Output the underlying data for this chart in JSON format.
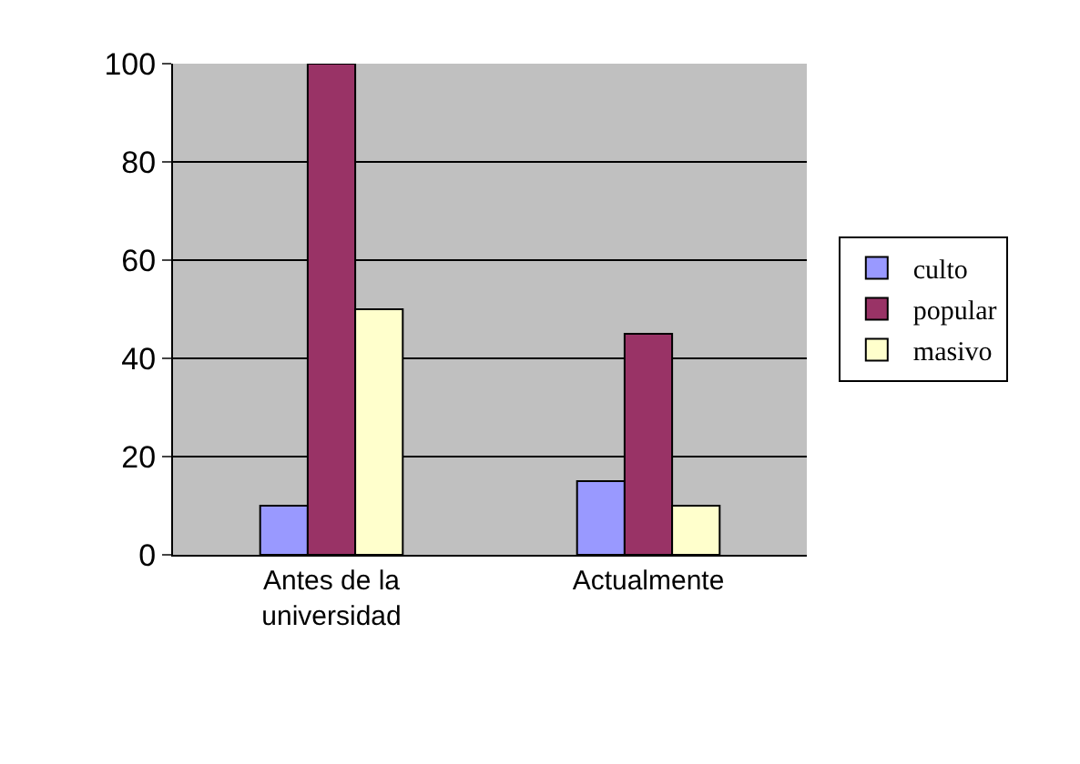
{
  "chart_data": {
    "type": "bar",
    "categories": [
      "Antes de la universidad",
      "Actualmente"
    ],
    "series": [
      {
        "name": "culto",
        "color": "#9999ff",
        "values": [
          10,
          15
        ]
      },
      {
        "name": "popular",
        "color": "#993366",
        "values": [
          100,
          45
        ]
      },
      {
        "name": "masivo",
        "color": "#ffffcc",
        "values": [
          50,
          10
        ]
      }
    ],
    "ylim": [
      0,
      100
    ],
    "yticks": [
      0,
      20,
      40,
      60,
      80,
      100
    ],
    "grid": "y",
    "legend": "right"
  }
}
